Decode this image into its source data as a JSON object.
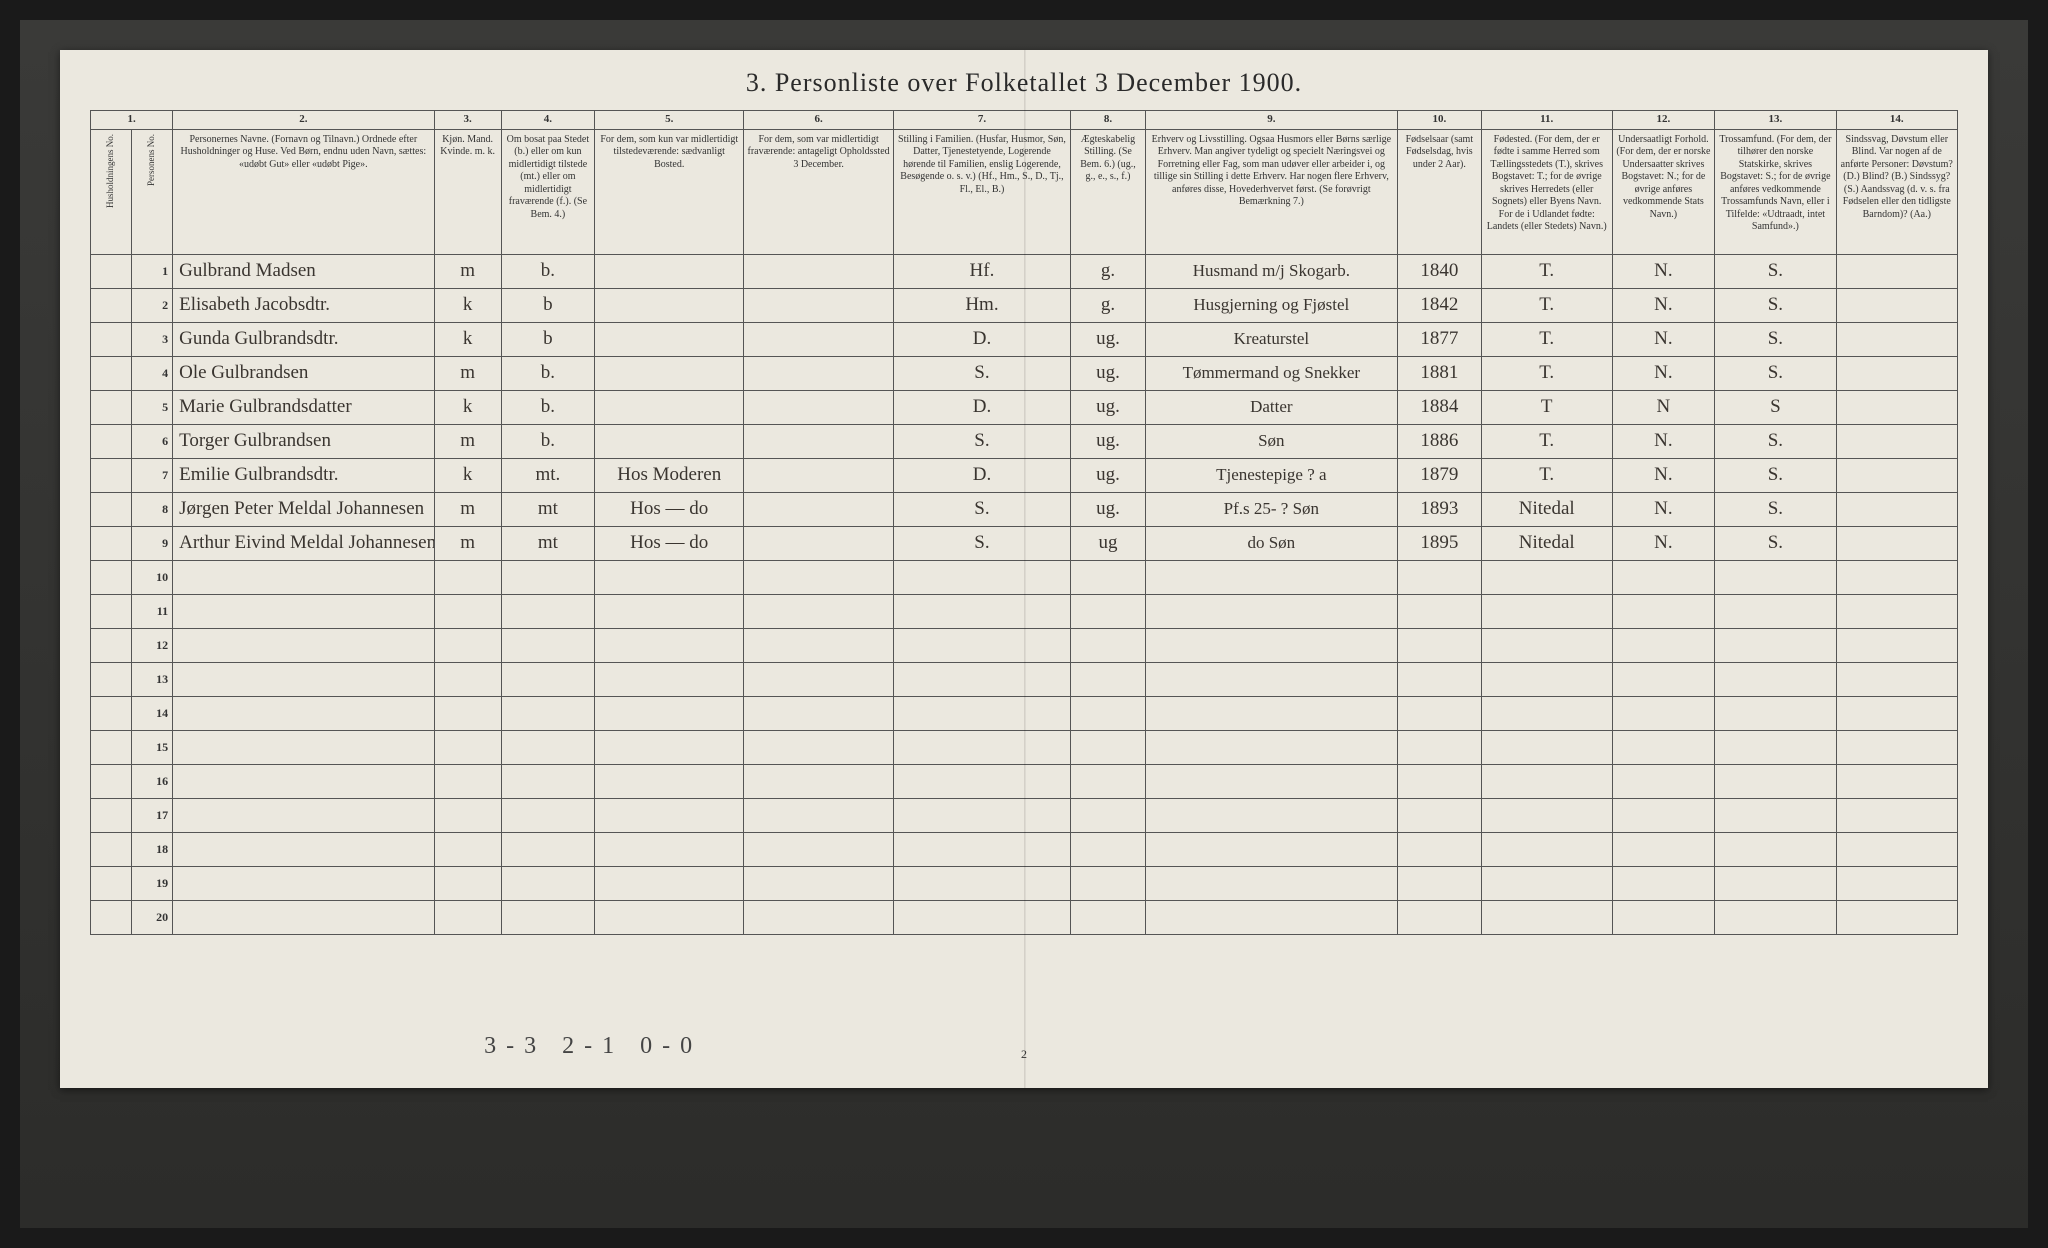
{
  "title": "3.  Personliste over Folketallet 3 December 1900.",
  "columns": {
    "nums": [
      "1.",
      "2.",
      "3.",
      "4.",
      "5.",
      "6.",
      "7.",
      "8.",
      "9.",
      "10.",
      "11.",
      "12.",
      "13.",
      "14."
    ],
    "h1a": "Husholdningens No.",
    "h1b": "Personens No.",
    "h2": "Personernes Navne.\n(Fornavn og Tilnavn.)\nOrdnede efter Husholdninger og Huse.\nVed Børn, endnu uden Navn, sættes: «udøbt Gut» eller «udøbt Pige».",
    "h3": "Kjøn.\nMand.  Kvinde.\nm.   k.",
    "h4": "Om bosat paa Stedet (b.) eller om kun midlertidigt tilstede (mt.) eller om midlertidigt fraværende (f.).\n(Se Bem. 4.)",
    "h5": "For dem, som kun var midlertidigt tilstedeværende:\nsædvanligt Bosted.",
    "h6": "For dem, som var midlertidigt fraværende:\nantageligt Opholdssted 3 December.",
    "h7": "Stilling i Familien.\n(Husfar, Husmor, Søn, Datter, Tjenestetyende, Logerende hørende til Familien, enslig Logerende, Besøgende o. s. v.)\n(Hf., Hm., S., D., Tj., Fl., El., B.)",
    "h8": "Ægteskabelig Stilling.\n(Se Bem. 6.)\n(ug., g., e., s., f.)",
    "h9": "Erhverv og Livsstilling.\nOgsaa Husmors eller Børns særlige Erhverv. Man angiver tydeligt og specielt Næringsvei og Forretning eller Fag, som man udøver eller arbeider i, og tillige sin Stilling i dette Erhverv. Har nogen flere Erhverv, anføres disse, Hovederhvervet først.\n(Se forøvrigt Bemærkning 7.)",
    "h10": "Fødselsaar\n(samt Fødselsdag, hvis under 2 Aar).",
    "h11": "Fødested.\n(For dem, der er fødte i samme Herred som Tællingsstedets (T.), skrives Bogstavet: T.; for de øvrige skrives Herredets (eller Sognets) eller Byens Navn. For de i Udlandet fødte: Landets (eller Stedets) Navn.)",
    "h12": "Undersaatligt Forhold.\n(For dem, der er norske Undersaatter skrives Bogstavet: N.; for de øvrige anføres vedkommende Stats Navn.)",
    "h13": "Trossamfund.\n(For dem, der tilhører den norske Statskirke, skrives Bogstavet: S.; for de øvrige anføres vedkommende Trossamfunds Navn, eller i Tilfelde: «Udtraadt, intet Samfund».)",
    "h14": "Sindssvag, Døvstum eller Blind.\nVar nogen af de anførte Personer:\nDøvstum? (D.)\nBlind? (B.)\nSindssyg? (S.)\nAandssvag (d. v. s. fra Fødselen eller den tidligste Barndom)? (Aa.)"
  },
  "rows": [
    {
      "n": "1",
      "name": "Gulbrand Madsen",
      "sex": "m",
      "res": "b.",
      "away": "",
      "where": "",
      "fam": "Hf.",
      "mar": "g.",
      "occ": "Husmand m/j Skogarb.",
      "year": "1840",
      "born": "T.",
      "nat": "N.",
      "rel": "S.",
      "dis": ""
    },
    {
      "n": "2",
      "name": "Elisabeth Jacobsdtr.",
      "sex": "k",
      "res": "b",
      "away": "",
      "where": "",
      "fam": "Hm.",
      "mar": "g.",
      "occ": "Husgjerning og Fjøstel",
      "year": "1842",
      "born": "T.",
      "nat": "N.",
      "rel": "S.",
      "dis": ""
    },
    {
      "n": "3",
      "name": "Gunda Gulbrandsdtr.",
      "sex": "k",
      "res": "b",
      "away": "",
      "where": "",
      "fam": "D.",
      "mar": "ug.",
      "occ": "Kreaturstel",
      "year": "1877",
      "born": "T.",
      "nat": "N.",
      "rel": "S.",
      "dis": ""
    },
    {
      "n": "4",
      "name": "Ole Gulbrandsen",
      "sex": "m",
      "res": "b.",
      "away": "",
      "where": "",
      "fam": "S.",
      "mar": "ug.",
      "occ": "Tømmermand og Snekker",
      "year": "1881",
      "born": "T.",
      "nat": "N.",
      "rel": "S.",
      "dis": ""
    },
    {
      "n": "5",
      "name": "Marie Gulbrandsdatter",
      "sex": "k",
      "res": "b.",
      "away": "",
      "where": "",
      "fam": "D.",
      "mar": "ug.",
      "occ": "Datter",
      "year": "1884",
      "born": "T",
      "nat": "N",
      "rel": "S",
      "dis": ""
    },
    {
      "n": "6",
      "name": "Torger Gulbrandsen",
      "sex": "m",
      "res": "b.",
      "away": "",
      "where": "",
      "fam": "S.",
      "mar": "ug.",
      "occ": "Søn",
      "year": "1886",
      "born": "T.",
      "nat": "N.",
      "rel": "S.",
      "dis": ""
    },
    {
      "n": "7",
      "name": "Emilie Gulbrandsdtr.",
      "sex": "k",
      "res": "mt.",
      "away": "Hos Moderen",
      "where": "",
      "fam": "D.",
      "mar": "ug.",
      "occ": "Tjenestepige ?  a",
      "year": "1879",
      "born": "T.",
      "nat": "N.",
      "rel": "S.",
      "dis": ""
    },
    {
      "n": "8",
      "name": "Jørgen Peter Meldal Johannesen",
      "sex": "m",
      "res": "mt",
      "away": "Hos  —  do",
      "where": "",
      "fam": "S.",
      "mar": "ug.",
      "occ": "Pf.s 25- ?  Søn",
      "year": "1893",
      "born": "Nitedal",
      "nat": "N.",
      "rel": "S.",
      "dis": ""
    },
    {
      "n": "9",
      "name": "Arthur Eivind Meldal Johannesen",
      "sex": "m",
      "res": "mt",
      "away": "Hos  —  do",
      "where": "",
      "fam": "S.",
      "mar": "ug",
      "occ": "do     Søn",
      "year": "1895",
      "born": "Nitedal",
      "nat": "N.",
      "rel": "S.",
      "dis": ""
    },
    {
      "n": "10"
    },
    {
      "n": "11"
    },
    {
      "n": "12"
    },
    {
      "n": "13"
    },
    {
      "n": "14"
    },
    {
      "n": "15"
    },
    {
      "n": "16"
    },
    {
      "n": "17"
    },
    {
      "n": "18"
    },
    {
      "n": "19"
    },
    {
      "n": "20"
    }
  ],
  "footnote": "3-3  2-1  0-0",
  "pagenum": "2",
  "style": {
    "paper_bg": "#ebe8df",
    "ink": "#3a3530",
    "rule": "#555",
    "scanner_bg": "#2c2c2a"
  }
}
